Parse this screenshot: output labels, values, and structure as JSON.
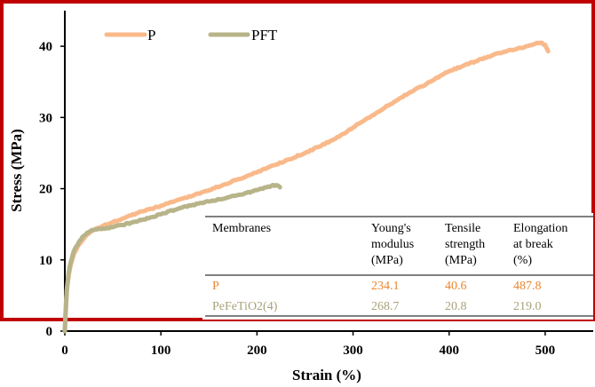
{
  "chart_data": {
    "type": "line",
    "xlabel": "Strain (%)",
    "ylabel": "Stress (MPa)",
    "xlim": [
      0,
      550
    ],
    "ylim": [
      0,
      45
    ],
    "xticks": [
      "0",
      "100",
      "200",
      "300",
      "400",
      "500"
    ],
    "xtick_values": [
      0,
      100,
      200,
      300,
      400,
      500
    ],
    "yticks": [
      "0",
      "10",
      "20",
      "30",
      "40"
    ],
    "ytick_values": [
      0,
      10,
      20,
      30,
      40
    ],
    "legend_position": "top-left",
    "grid": false,
    "frame_color": "#c00000",
    "series": [
      {
        "name": "P",
        "color": "#f9b98a",
        "x": [
          0,
          1,
          2,
          4,
          6,
          8,
          10,
          15,
          20,
          25,
          30,
          40,
          50,
          60,
          80,
          100,
          120,
          150,
          180,
          200,
          220,
          250,
          280,
          300,
          320,
          350,
          380,
          400,
          420,
          450,
          470,
          480,
          490,
          495,
          500,
          503
        ],
        "y": [
          0,
          3,
          5.5,
          7.8,
          9.2,
          10.2,
          11.0,
          12.2,
          13.0,
          13.7,
          14.2,
          14.8,
          15.3,
          15.8,
          16.8,
          17.6,
          18.5,
          19.8,
          21.3,
          22.3,
          23.4,
          25.0,
          26.9,
          28.6,
          30.3,
          32.8,
          35.0,
          36.5,
          37.5,
          39.0,
          39.6,
          40.0,
          40.4,
          40.5,
          40.2,
          39.3
        ]
      },
      {
        "name": "PFT",
        "color": "#b8b48a",
        "x": [
          0,
          1,
          2,
          4,
          6,
          8,
          10,
          15,
          20,
          25,
          30,
          40,
          50,
          60,
          80,
          100,
          120,
          150,
          180,
          200,
          210,
          215,
          220,
          224
        ],
        "y": [
          0,
          3.2,
          5.8,
          8.2,
          9.6,
          10.6,
          11.4,
          12.6,
          13.4,
          13.9,
          14.2,
          14.4,
          14.6,
          14.9,
          15.6,
          16.4,
          17.3,
          18.2,
          19.1,
          19.8,
          20.2,
          20.4,
          20.5,
          20.2
        ]
      }
    ],
    "table": {
      "headers": [
        [
          "Membranes"
        ],
        [
          "Young's",
          "modulus",
          "(MPa)"
        ],
        [
          "Tensile",
          "strength",
          "(MPa)"
        ],
        [
          "Elongation",
          "at break",
          "(%)"
        ]
      ],
      "rows": [
        {
          "cells": [
            "P",
            "234.1",
            "40.6",
            "487.8"
          ],
          "color": "#e9862f"
        },
        {
          "cells": [
            "PeFeTiO2(4)",
            "268.7",
            "20.8",
            "219.0"
          ],
          "color": "#a8a27a"
        }
      ]
    }
  }
}
